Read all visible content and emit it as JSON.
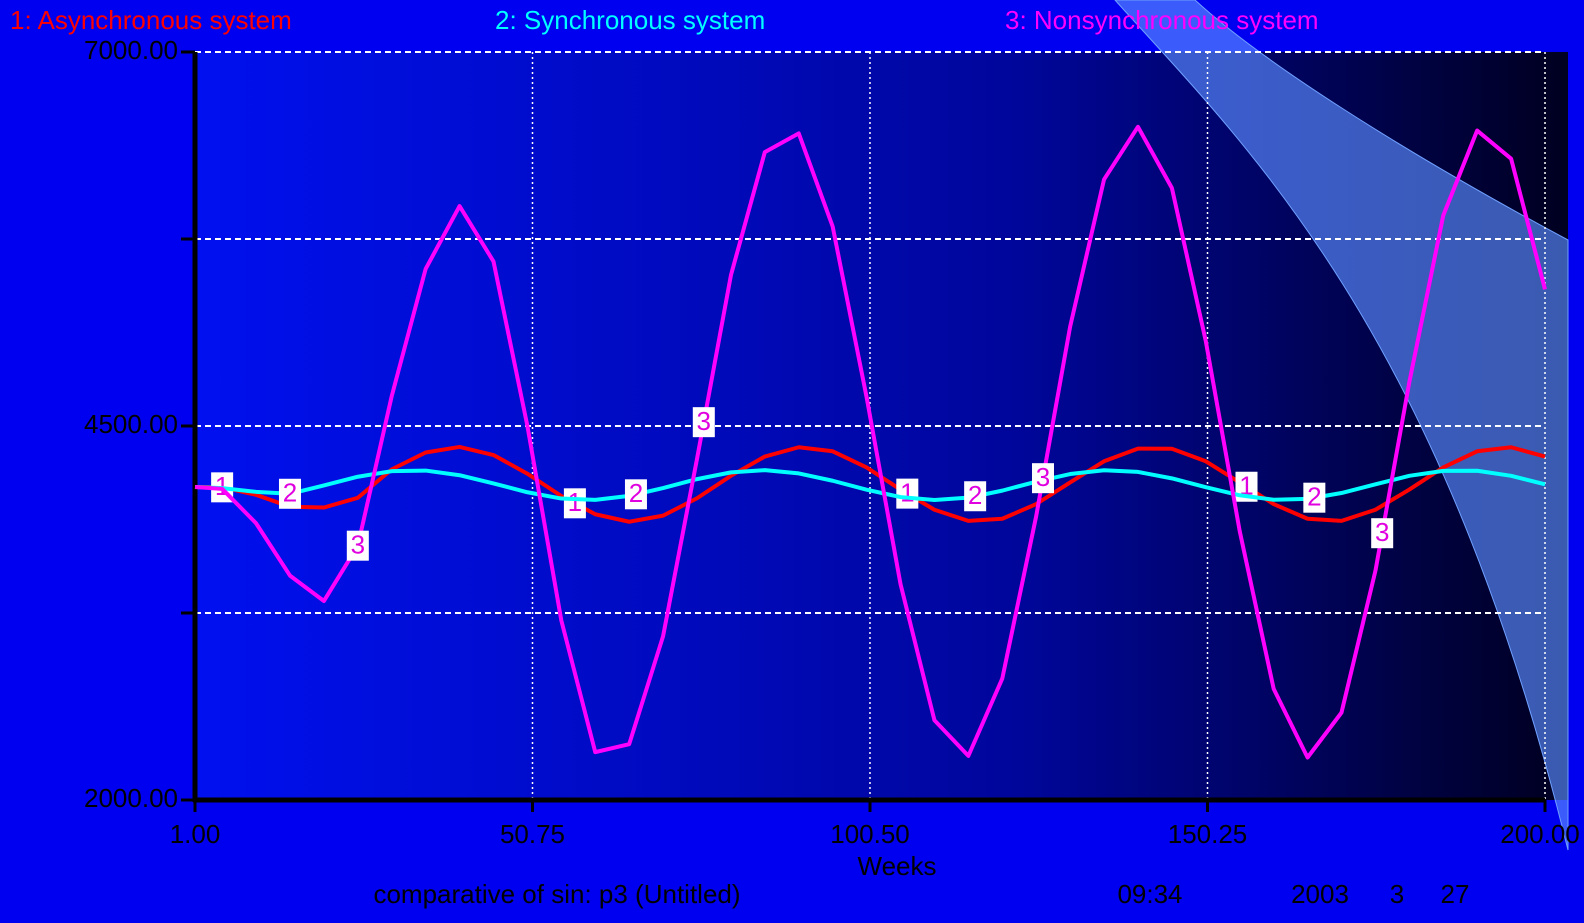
{
  "chart_data": {
    "type": "line",
    "x_label": "Weeks",
    "footer": {
      "title": "comparative of sin: p3 (Untitled)",
      "time": "09:34",
      "year": "2003",
      "month": "3",
      "day": "27"
    },
    "x": [
      1,
      5,
      10,
      15,
      20,
      25,
      30,
      35,
      40,
      45,
      50,
      55,
      60,
      65,
      70,
      75,
      80,
      85,
      90,
      95,
      100,
      105,
      110,
      115,
      120,
      125,
      130,
      135,
      140,
      145,
      150,
      155,
      160,
      165,
      170,
      175,
      180,
      185,
      190,
      195,
      200
    ],
    "series": [
      {
        "name": "1: Asynchronous system",
        "marker": "1",
        "color": "#ff0000",
        "values": [
          4092,
          4090,
          4040,
          3960,
          3955,
          4020,
          4210,
          4323,
          4360,
          4306,
          4181,
          4032,
          3910,
          3860,
          3901,
          4017,
          4167,
          4296,
          4358,
          4331,
          4223,
          4075,
          3940,
          3866,
          3880,
          3978,
          4123,
          4264,
          4349,
          4348,
          4264,
          4123,
          3978,
          3880,
          3866,
          3940,
          4075,
          4223,
          4331,
          4358,
          4296
        ]
      },
      {
        "name": "2: Synchronous system",
        "marker": "2",
        "color": "#00ffff",
        "values": [
          4092,
          4085,
          4060,
          4047,
          4103,
          4161,
          4198,
          4202,
          4171,
          4116,
          4057,
          4015,
          4006,
          4033,
          4085,
          4145,
          4190,
          4205,
          4183,
          4134,
          4074,
          4025,
          4005,
          4021,
          4068,
          4128,
          4179,
          4204,
          4193,
          4150,
          4091,
          4037,
          4007,
          4013,
          4052,
          4110,
          4167,
          4200,
          4201,
          4167,
          4110
        ]
      },
      {
        "name": "3: Nonsynchronous system",
        "marker": "3",
        "color": "#ff00ff",
        "values": [
          4092,
          4080,
          3850,
          3500,
          3330,
          3700,
          4700,
          5550,
          5970,
          5600,
          4500,
          3200,
          2320,
          2373,
          3095,
          4280,
          5508,
          6331,
          6456,
          5833,
          4692,
          3443,
          2533,
          2295,
          2812,
          3898,
          5164,
          6148,
          6500,
          6091,
          5067,
          3797,
          2744,
          2284,
          2584,
          3531,
          4793,
          5907,
          6475,
          6287,
          5413
        ]
      }
    ],
    "xlim": [
      1,
      200
    ],
    "ylim": [
      2000,
      7000
    ],
    "xticks": [
      {
        "value": 1,
        "label": "1.00"
      },
      {
        "value": 50.75,
        "label": "50.75"
      },
      {
        "value": 100.5,
        "label": "100.50"
      },
      {
        "value": 150.25,
        "label": "150.25"
      },
      {
        "value": 200,
        "label": "200.00"
      }
    ],
    "yticks": [
      {
        "value": 2000,
        "label": "2000.00"
      },
      {
        "value": 4500,
        "label": "4500.00"
      },
      {
        "value": 7000,
        "label": "7000.00"
      }
    ],
    "ygrid": [
      3250,
      5750
    ],
    "grid": true
  }
}
